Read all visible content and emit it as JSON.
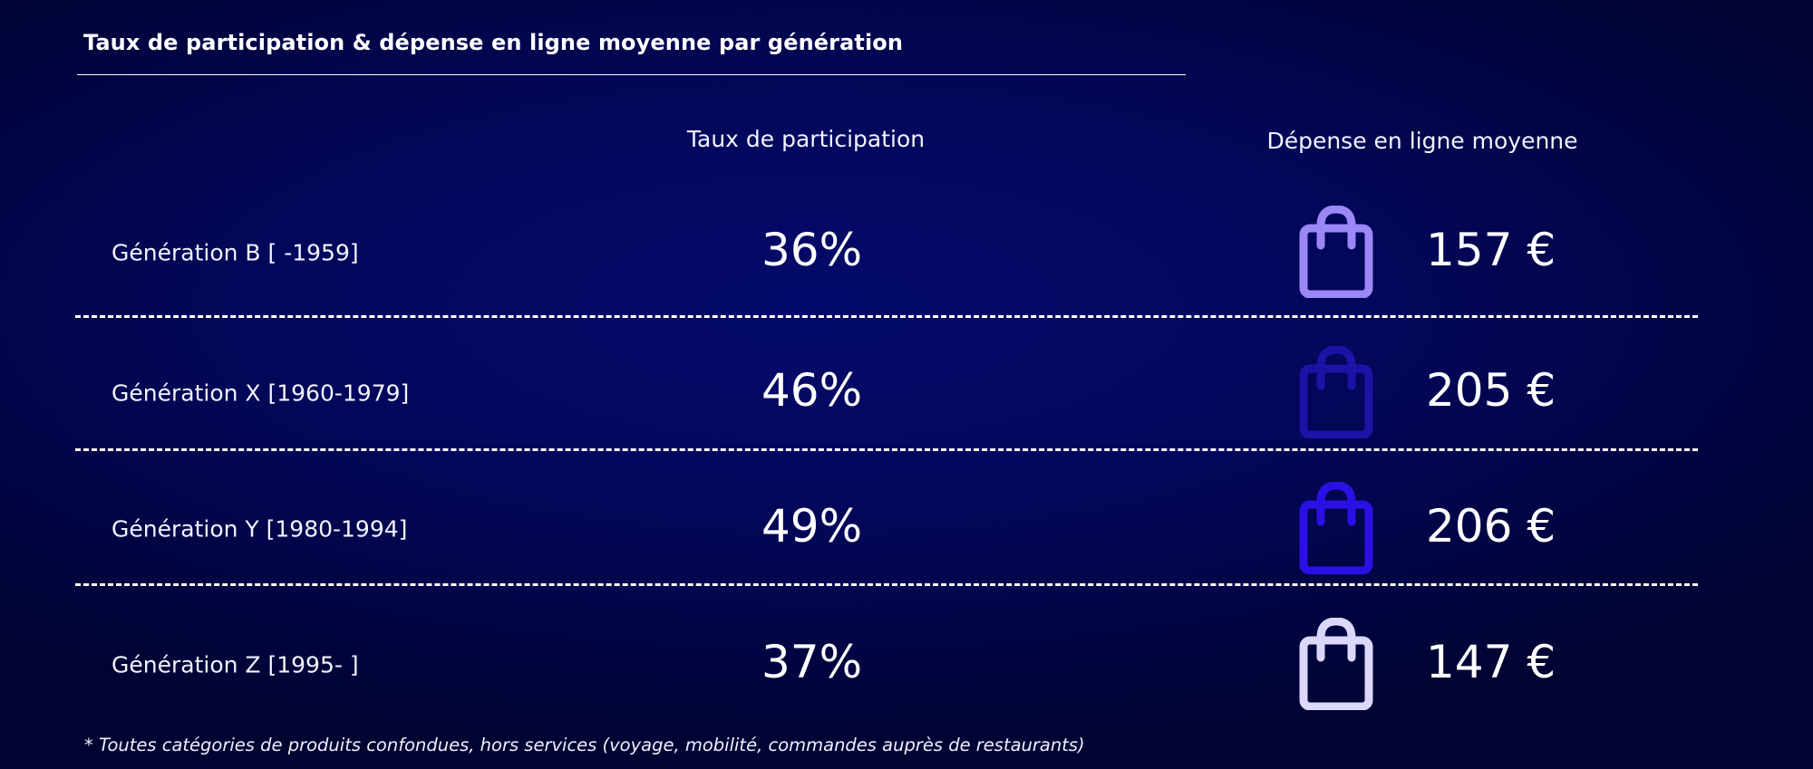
{
  "title": "Taux de participation & dépense en ligne moyenne par génération",
  "headers": {
    "participation": "Taux de participation",
    "spend": "Dépense en ligne moyenne"
  },
  "rows": [
    {
      "label": "Génération B [ -1959]",
      "rate": "36%",
      "spend": "157 €",
      "icon": "shopping-bag-icon",
      "icon_color": "#9b87f5"
    },
    {
      "label": "Génération X [1960-1979]",
      "rate": "46%",
      "spend": "205 €",
      "icon": "shopping-bag-icon",
      "icon_color": "#1d12a6"
    },
    {
      "label": "Génération Y [1980-1994]",
      "rate": "49%",
      "spend": "206 €",
      "icon": "shopping-bag-icon",
      "icon_color": "#2b10e6"
    },
    {
      "label": "Génération Z [1995- ]",
      "rate": "37%",
      "spend": "147 €",
      "icon": "shopping-bag-icon",
      "icon_color": "#dcd8fb"
    }
  ],
  "footnote": "* Toutes catégories de produits confondues, hors services (voyage, mobilité, commandes auprès de restaurants)",
  "chart_data": {
    "type": "table",
    "title": "Taux de participation & dépense en ligne moyenne par génération",
    "columns": [
      "",
      "Taux de participation",
      "Dépense en ligne moyenne"
    ],
    "categories": [
      "Génération B [ -1959]",
      "Génération X [1960-1979]",
      "Génération Y [1980-1994]",
      "Génération Z [1995- ]"
    ],
    "series": [
      {
        "name": "Taux de participation",
        "values": [
          36,
          46,
          49,
          37
        ],
        "unit": "%"
      },
      {
        "name": "Dépense en ligne moyenne",
        "values": [
          157,
          205,
          206,
          147
        ],
        "unit": "€"
      }
    ]
  }
}
